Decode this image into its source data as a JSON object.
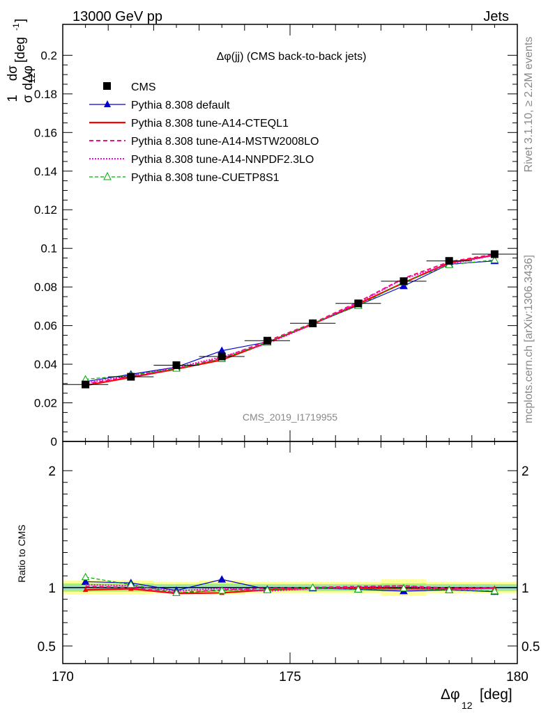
{
  "header": {
    "left": "13000 GeV pp",
    "right": "Jets",
    "side_top": "Rivet 3.1.10, ≥ 2.2M events",
    "side_bottom": "mcplots.cern.ch [arXiv:1306.3436]",
    "watermark": "CMS_2019_I1719955"
  },
  "chart_data": [
    {
      "type": "line",
      "title": "Δφ(jj) (CMS back-to-back jets)",
      "ylabel_parts": {
        "frac_num": "1",
        "frac_den": "σ",
        "d": "dσ",
        "dphi": "dΔφ",
        "sub": "12",
        "unit": "[deg",
        "unit_exp": "-1",
        "unit_close": "]"
      },
      "ylim": [
        0,
        0.216
      ],
      "xlim": [
        170,
        180
      ],
      "yticks": [
        "0",
        "0.02",
        "0.04",
        "0.06",
        "0.08",
        "0.1",
        "0.12",
        "0.14",
        "0.16",
        "0.18",
        "0.2"
      ],
      "ytick_values": [
        0,
        0.02,
        0.04,
        0.06,
        0.08,
        0.1,
        0.12,
        0.14,
        0.16,
        0.18,
        0.2
      ],
      "x": [
        170.5,
        171.5,
        172.5,
        173.5,
        174.5,
        175.5,
        176.5,
        177.5,
        178.5,
        179.5
      ],
      "series": [
        {
          "name": "CMS",
          "color": "#000000",
          "style": "data",
          "values": [
            0.0295,
            0.0335,
            0.0395,
            0.044,
            0.0522,
            0.0612,
            0.0715,
            0.083,
            0.0935,
            0.097
          ]
        },
        {
          "name": "Pythia 8.308 default",
          "color": "#0000cc",
          "style": "solid-triangle",
          "values": [
            0.031,
            0.0348,
            0.0385,
            0.047,
            0.0515,
            0.0608,
            0.0705,
            0.0805,
            0.0918,
            0.0935
          ]
        },
        {
          "name": "Pythia 8.308 tune-A14-CTEQL1",
          "color": "#ff0000",
          "style": "solid-thick",
          "values": [
            0.029,
            0.0332,
            0.0375,
            0.0422,
            0.0512,
            0.0608,
            0.0712,
            0.0822,
            0.0925,
            0.0965
          ]
        },
        {
          "name": "Pythia 8.308 tune-A14-MSTW2008LO",
          "color": "#ee1177",
          "style": "dashed",
          "values": [
            0.0298,
            0.0336,
            0.0378,
            0.0432,
            0.052,
            0.0612,
            0.0722,
            0.0845,
            0.093,
            0.097
          ]
        },
        {
          "name": "Pythia 8.308 tune-A14-NNPDF2.3LO",
          "color": "#ff00cc",
          "style": "dotted",
          "values": [
            0.0303,
            0.034,
            0.0383,
            0.0438,
            0.0507,
            0.0606,
            0.0718,
            0.0842,
            0.0918,
            0.0965
          ]
        },
        {
          "name": "Pythia 8.308 tune-CUETP8S1",
          "color": "#00aa00",
          "style": "dashed-triangle",
          "values": [
            0.0322,
            0.0343,
            0.0378,
            0.0428,
            0.0513,
            0.0612,
            0.0703,
            0.0825,
            0.0915,
            0.094
          ]
        }
      ]
    },
    {
      "type": "line",
      "ylabel": "Ratio to CMS",
      "ylim": [
        0.35,
        2.25
      ],
      "xlim": [
        170,
        180
      ],
      "yticks": [
        "0.5",
        "1",
        "2"
      ],
      "ytick_values": [
        0.5,
        1,
        2
      ],
      "xticks": [
        "170",
        "175",
        "180"
      ],
      "xtick_values": [
        170,
        175,
        180
      ],
      "xlabel_parts": {
        "sym": "Δφ",
        "sub": "12",
        "unit": "[deg]"
      },
      "x": [
        170.5,
        171.5,
        172.5,
        173.5,
        174.5,
        175.5,
        176.5,
        177.5,
        178.5,
        179.5
      ],
      "bands": [
        {
          "color": "#ffff99",
          "half_width": [
            0.06,
            0.06,
            0.05,
            0.06,
            0.05,
            0.05,
            0.05,
            0.07,
            0.05,
            0.05
          ]
        },
        {
          "color": "#b3ec66",
          "half_width": [
            0.035,
            0.035,
            0.03,
            0.035,
            0.03,
            0.03,
            0.03,
            0.035,
            0.03,
            0.03
          ]
        },
        {
          "color": "#99dfcc",
          "half_width": [
            0.02,
            0.02,
            0.02,
            0.02,
            0.02,
            0.02,
            0.02,
            0.02,
            0.02,
            0.02
          ]
        }
      ],
      "series": [
        {
          "name": "Pythia 8.308 default",
          "color": "#0000cc",
          "style": "solid-triangle",
          "values": [
            1.05,
            1.04,
            0.975,
            1.07,
            0.985,
            0.995,
            0.985,
            0.97,
            0.98,
            0.965
          ]
        },
        {
          "name": "Pythia 8.308 tune-A14-CTEQL1",
          "color": "#ff0000",
          "style": "solid-thick",
          "values": [
            0.98,
            0.99,
            0.95,
            0.955,
            0.98,
            0.995,
            0.995,
            0.99,
            0.99,
            0.995
          ]
        },
        {
          "name": "Pythia 8.308 tune-A14-MSTW2008LO",
          "color": "#ee1177",
          "style": "dashed",
          "values": [
            1.01,
            1.0,
            0.955,
            0.98,
            0.995,
            1.0,
            1.01,
            1.015,
            0.995,
            1.0
          ]
        },
        {
          "name": "Pythia 8.308 tune-A14-NNPDF2.3LO",
          "color": "#ff00cc",
          "style": "dotted",
          "values": [
            1.025,
            1.015,
            0.97,
            0.995,
            0.97,
            0.99,
            1.005,
            1.015,
            0.98,
            0.995
          ]
        },
        {
          "name": "Pythia 8.308 tune-CUETP8S1",
          "color": "#00aa00",
          "style": "dashed-triangle",
          "values": [
            1.09,
            1.025,
            0.955,
            0.975,
            0.98,
            1.0,
            0.985,
            0.995,
            0.98,
            0.97
          ]
        }
      ]
    }
  ]
}
